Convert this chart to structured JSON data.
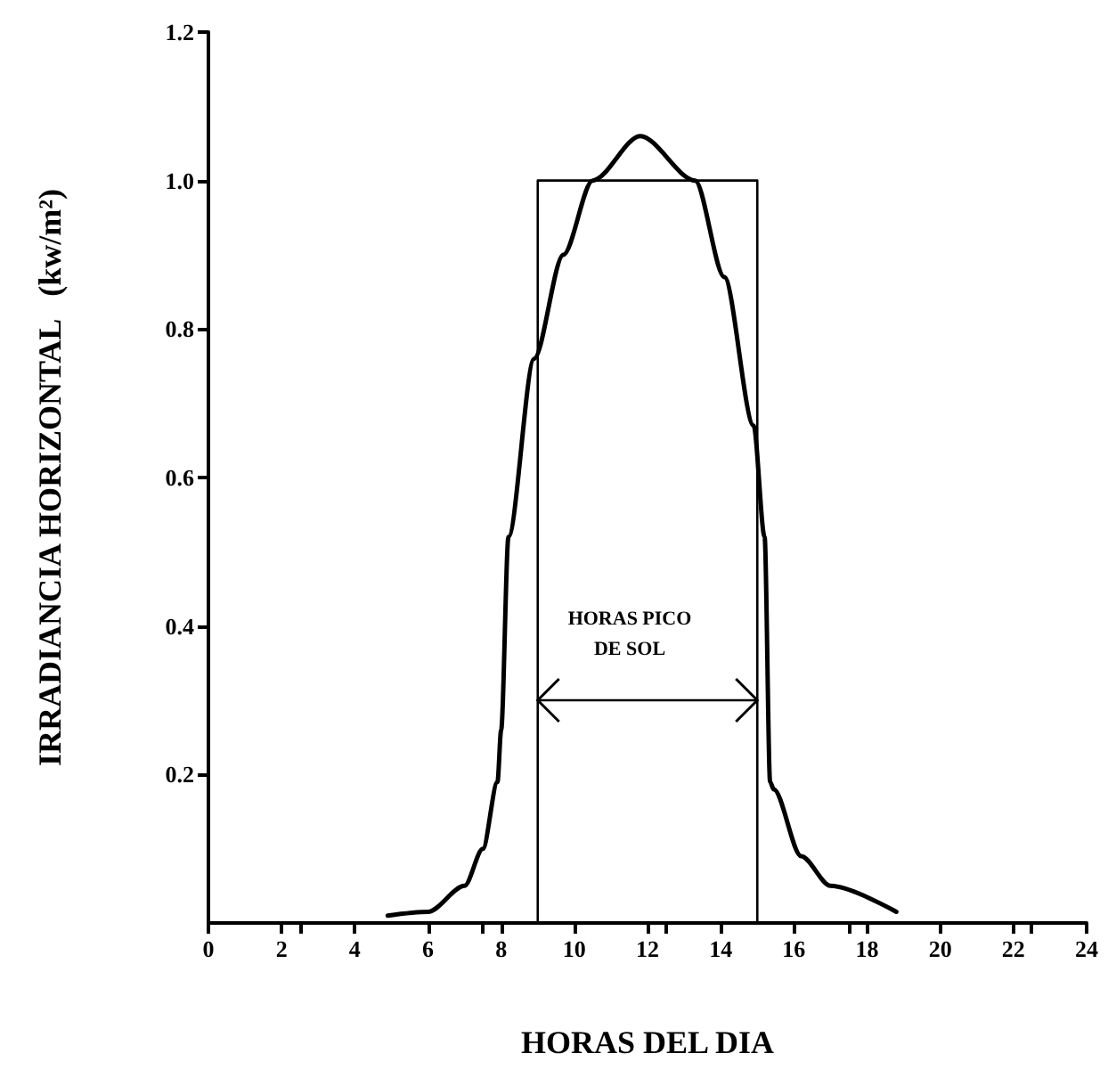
{
  "chart_data": {
    "type": "line",
    "xlabel": "HORAS DEL DIA",
    "ylabel": "IRRADIANCIA HORIZONTAL   (kw/m²)",
    "xlim": [
      0,
      24
    ],
    "xticks": [
      0,
      2,
      4,
      6,
      8,
      10,
      12,
      14,
      16,
      18,
      20,
      22,
      24
    ],
    "ylim": [
      0,
      1.2
    ],
    "yticks": [
      0.2,
      0.4,
      0.6,
      {
        "value": 0.8,
        "label": "0.8"
      },
      {
        "value": 1,
        "label": "1.0"
      },
      1.2
    ],
    "marker": "none",
    "grid": false,
    "series": [
      {
        "color": "#000000",
        "x": [
          4.9,
          6.0,
          7.0,
          7.5,
          7.9,
          8.0,
          8.2,
          8.9,
          9.7,
          10.5,
          11.8,
          13.3,
          14.1,
          14.9,
          15.2,
          15.35,
          15.45,
          16.2,
          17.0,
          18.8
        ],
        "values": [
          0.01,
          0.015,
          0.05,
          0.1,
          0.19,
          0.26,
          0.52,
          0.76,
          0.9,
          1.0,
          1.06,
          1.0,
          0.87,
          0.67,
          0.52,
          0.19,
          0.18,
          0.09,
          0.05,
          0.015
        ]
      },
      {
        "color": "#000000",
        "x": [
          9,
          9,
          15,
          15
        ],
        "values": [
          0,
          1,
          1,
          0
        ]
      }
    ],
    "annotations": [
      "HORAS PICO\nDE SOL"
    ]
  }
}
